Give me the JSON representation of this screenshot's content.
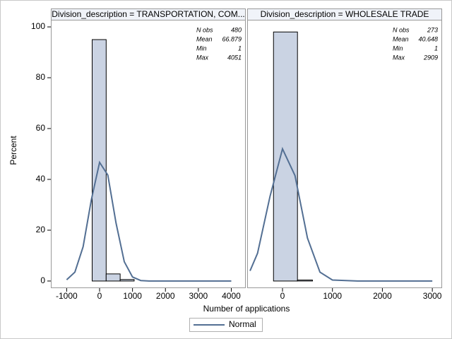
{
  "chart_data": [
    {
      "type": "histogram",
      "title": "Division_description = TRANSPORTATION, COM...",
      "ylabel": "Percent",
      "xlabel": "Number of applications",
      "bins": [
        -225,
        200,
        625,
        1050
      ],
      "values": [
        95,
        2.8,
        0.6
      ],
      "color": "#cad3e3",
      "curve": {
        "name": "Normal",
        "color": "#536f93",
        "x": [
          -1000,
          -750,
          -500,
          -250,
          0,
          250,
          500,
          750,
          1000,
          1250,
          1500,
          2000,
          3000,
          4000
        ],
        "values": [
          0.5,
          3.5,
          13.5,
          32.0,
          46.7,
          41.7,
          22.8,
          7.6,
          1.6,
          0.2,
          0,
          0,
          0,
          0
        ]
      },
      "stats": [
        {
          "label": "N obs",
          "value": "480"
        },
        {
          "label": "Mean",
          "value": "66.879"
        },
        {
          "label": "Min",
          "value": "1"
        },
        {
          "label": "Max",
          "value": "4051"
        }
      ],
      "xlim": [
        -1480,
        4440
      ],
      "xticks": [
        -1000,
        0,
        1000,
        2000,
        3000,
        4000
      ],
      "ylim": [
        -2.8,
        102.8
      ],
      "yticks": [
        0,
        20,
        40,
        60,
        80,
        100
      ]
    },
    {
      "type": "histogram",
      "title": "Division_description = WHOLESALE TRADE",
      "bins": [
        -180,
        300,
        600
      ],
      "values": [
        98,
        0.4
      ],
      "color": "#cad3e3",
      "curve": {
        "color": "#536f93",
        "x": [
          -650,
          -500,
          -250,
          0,
          250,
          500,
          750,
          1000,
          1500,
          2000,
          3000
        ],
        "values": [
          4.0,
          10.9,
          33.3,
          52.0,
          41.5,
          16.9,
          3.5,
          0.4,
          0,
          0,
          0
        ]
      },
      "stats": [
        {
          "label": "N obs",
          "value": "273"
        },
        {
          "label": "Mean",
          "value": "40.648"
        },
        {
          "label": "Min",
          "value": "1"
        },
        {
          "label": "Max",
          "value": "2909"
        }
      ],
      "xlim": [
        -707,
        3196
      ],
      "xticks": [
        0,
        1000,
        2000,
        3000
      ],
      "ylim": [
        -2.8,
        102.8
      ]
    }
  ]
}
